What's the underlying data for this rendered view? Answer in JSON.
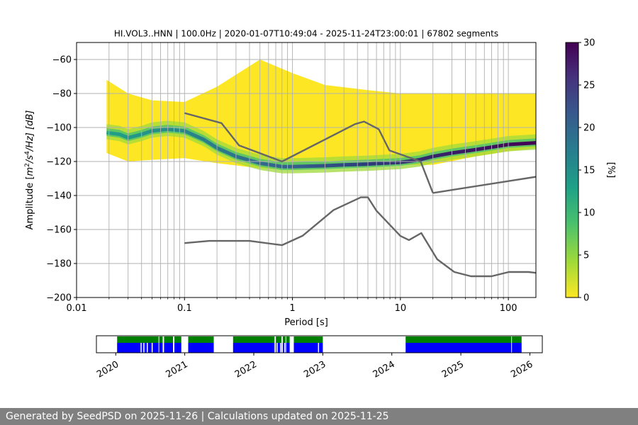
{
  "chart_data": [
    {
      "type": "heatmap",
      "title": "HI.VOL3..HNN | 100.0Hz | 2020-01-07T10:49:04 - 2025-11-24T23:00:01 | 67802 segments",
      "xlabel": "Period [s]",
      "ylabel_parts": {
        "prefix": "Amplitude [",
        "m": "m",
        "two": "2",
        "s": "/s",
        "four": "4",
        "hz": "/Hz] [dB]"
      },
      "x_scale": "log",
      "xlim": [
        0.01,
        180
      ],
      "ylim": [
        -200,
        -50
      ],
      "x_ticks": [
        0.01,
        0.1,
        1,
        10,
        100
      ],
      "x_tick_labels": [
        "0.01",
        "0.1",
        "1",
        "10",
        "100"
      ],
      "y_ticks": [
        -200,
        -180,
        -160,
        -140,
        -120,
        -100,
        -80,
        -60
      ],
      "y_tick_labels": [
        "−200",
        "−180",
        "−160",
        "−140",
        "−120",
        "−100",
        "−80",
        "−60"
      ],
      "grid": true,
      "grid_vertical_periods": [
        0.02,
        0.03,
        0.04,
        0.05,
        0.06,
        0.07,
        0.08,
        0.09,
        0.1,
        0.2,
        0.3,
        0.4,
        0.5,
        0.6,
        0.7,
        0.8,
        0.9,
        1,
        2,
        3,
        4,
        5,
        6,
        7,
        8,
        9,
        10,
        20,
        30,
        40,
        50,
        60,
        70,
        80,
        90,
        100
      ],
      "colorbar": {
        "label": "[%]",
        "range": [
          0,
          30
        ],
        "ticks": [
          0,
          5,
          10,
          15,
          20,
          25,
          30
        ],
        "colormap_stops": [
          "#fde725",
          "#a0da39",
          "#4ac16d",
          "#1fa187",
          "#277f8e",
          "#365c8d",
          "#46327e",
          "#440154"
        ]
      },
      "psd_mode_curve": {
        "period": [
          0.019,
          0.025,
          0.03,
          0.04,
          0.05,
          0.07,
          0.1,
          0.15,
          0.2,
          0.3,
          0.5,
          0.8,
          1,
          2,
          3,
          5,
          7,
          10,
          15,
          20,
          30,
          50,
          100,
          180
        ],
        "db": [
          -103,
          -104,
          -106,
          -104,
          -102,
          -101,
          -102,
          -107,
          -112,
          -117,
          -121,
          -123,
          -123,
          -122.5,
          -122,
          -121.5,
          -121,
          -120.5,
          -119,
          -117,
          -115,
          -113,
          -110,
          -109
        ]
      },
      "psd_spread": {
        "period": [
          0.019,
          0.03,
          0.05,
          0.1,
          0.2,
          0.5,
          1,
          2,
          5,
          10,
          20,
          50,
          100,
          180
        ],
        "upper_db": [
          -72,
          -80,
          -84,
          -85,
          -76,
          -60,
          -68,
          -75,
          -78,
          -80,
          -80,
          -80,
          -80,
          -80
        ],
        "lower_db": [
          -115,
          -120,
          -119,
          -118,
          -121,
          -124,
          -125,
          -124,
          -123,
          -122,
          -122,
          -117,
          -114,
          -112
        ]
      },
      "nhnm": {
        "period": [
          0.1,
          0.22,
          0.32,
          0.8,
          3.8,
          4.6,
          6.3,
          7.9,
          15.4,
          20
        ],
        "db": [
          -91.5,
          -97.4,
          -110.5,
          -120,
          -98,
          -96.5,
          -101,
          -113.5,
          -120,
          -138.5
        ]
      },
      "nhnm_tail": {
        "period": [
          20,
          180
        ],
        "db": [
          -138.5,
          -129
        ]
      },
      "nlnm": {
        "period": [
          0.1,
          0.17,
          0.4,
          0.8,
          1.24,
          2.4,
          4.3,
          5.0,
          6.0,
          10,
          12,
          15.6,
          21.9,
          31.6,
          45,
          70,
          101,
          154,
          180
        ],
        "db": [
          -168,
          -166.7,
          -166.7,
          -169.2,
          -163.7,
          -148.6,
          -141.1,
          -141.1,
          -149,
          -163.8,
          -166.2,
          -162.1,
          -177.5,
          -185,
          -187.5,
          -187.5,
          -185,
          -185,
          -185.5
        ]
      }
    },
    {
      "type": "timeline",
      "x_ticks": [
        2020,
        2021,
        2022,
        2023,
        2024,
        2025,
        2026
      ],
      "x_tick_labels": [
        "2020",
        "2021",
        "2022",
        "2023",
        "2024",
        "2025",
        "2026"
      ],
      "xlim": [
        2019.72,
        2026.18
      ],
      "colors": {
        "top": "#008000",
        "bottom": "#0000ff"
      },
      "available_ranges": [
        [
          2020.02,
          2020.62
        ],
        [
          2020.63,
          2020.68
        ],
        [
          2020.7,
          2020.83
        ],
        [
          2020.85,
          2020.95
        ],
        [
          2021.05,
          2021.42
        ],
        [
          2021.7,
          2022.3
        ],
        [
          2022.32,
          2022.4
        ],
        [
          2022.42,
          2022.46
        ],
        [
          2022.47,
          2022.52
        ],
        [
          2022.58,
          2023.0
        ],
        [
          2024.2,
          2025.73
        ],
        [
          2025.74,
          2025.88
        ]
      ],
      "bottom_gaps": [
        2020.36,
        2020.4,
        2020.45,
        2020.52,
        2022.33,
        2022.38,
        2022.44,
        2022.56,
        2022.93
      ]
    }
  ],
  "footer": {
    "text": "Generated by SeedPSD on 2025-11-26 | Calculations updated on 2025-11-25"
  }
}
